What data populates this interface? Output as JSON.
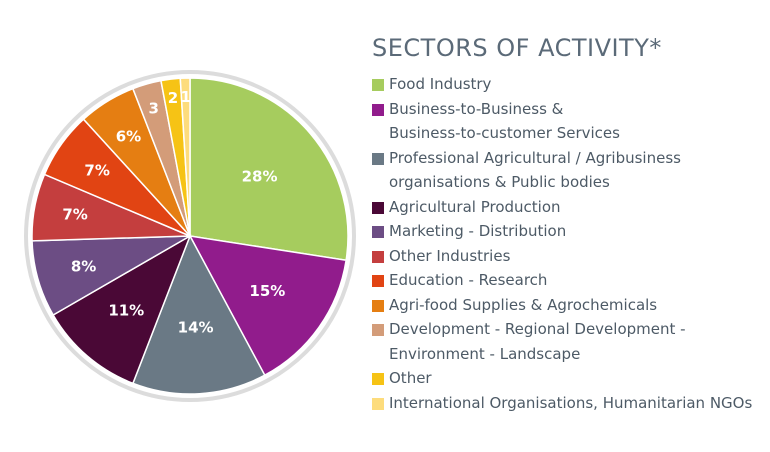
{
  "chart_data": {
    "type": "pie",
    "title": "SECTORS OF ACTIVITY*",
    "slices": [
      {
        "name": "Food Industry",
        "value": 28,
        "label": "28%",
        "color": "#a6cc5e"
      },
      {
        "name": "Business-to-Business & Business-to-customer Services",
        "value": 15,
        "label": "15%",
        "color": "#911c8c"
      },
      {
        "name": "Professional Agricultural / Agribusiness organisations & Public bodies",
        "value": 14,
        "label": "14%",
        "color": "#6a7985"
      },
      {
        "name": "Agricultural Production",
        "value": 11,
        "label": "11%",
        "color": "#4a0836"
      },
      {
        "name": "Marketing - Distribution",
        "value": 8,
        "label": "8%",
        "color": "#6c4d84"
      },
      {
        "name": "Other Industries",
        "value": 7,
        "label": "7%",
        "color": "#c43e3e"
      },
      {
        "name": "Education - Research",
        "value": 7,
        "label": "7%",
        "color": "#e14413"
      },
      {
        "name": "Agri-food Supplies & Agrochemicals",
        "value": 6,
        "label": "6%",
        "color": "#e57e12"
      },
      {
        "name": "Development - Regional Development - Environment - Landscape",
        "value": 3,
        "label": "3",
        "color": "#d39c79"
      },
      {
        "name": "Other",
        "value": 2,
        "label": "2",
        "color": "#f6c315"
      },
      {
        "name": "International Organisations, Humanitarian NGOs",
        "value": 1,
        "label": "1",
        "color": "#fddc7c"
      }
    ]
  },
  "legend": {
    "items": [
      {
        "lines": [
          "Food Industry"
        ],
        "color": "#a6cc5e"
      },
      {
        "lines": [
          "Business-to-Business &",
          "Business-to-customer Services"
        ],
        "color": "#911c8c"
      },
      {
        "lines": [
          "Professional Agricultural / Agribusiness",
          "organisations & Public bodies"
        ],
        "color": "#6a7985"
      },
      {
        "lines": [
          "Agricultural Production"
        ],
        "color": "#4a0836"
      },
      {
        "lines": [
          "Marketing - Distribution"
        ],
        "color": "#6c4d84"
      },
      {
        "lines": [
          "Other Industries"
        ],
        "color": "#c43e3e"
      },
      {
        "lines": [
          "Education - Research"
        ],
        "color": "#e14413"
      },
      {
        "lines": [
          "Agri-food Supplies & Agrochemicals"
        ],
        "color": "#e57e12"
      },
      {
        "lines": [
          "Development - Regional Development -",
          "Environment - Landscape"
        ],
        "color": "#d39c79"
      },
      {
        "lines": [
          "Other"
        ],
        "color": "#f6c315"
      },
      {
        "lines": [
          "International Organisations, Humanitarian NGOs"
        ],
        "color": "#fddc7c"
      }
    ]
  }
}
